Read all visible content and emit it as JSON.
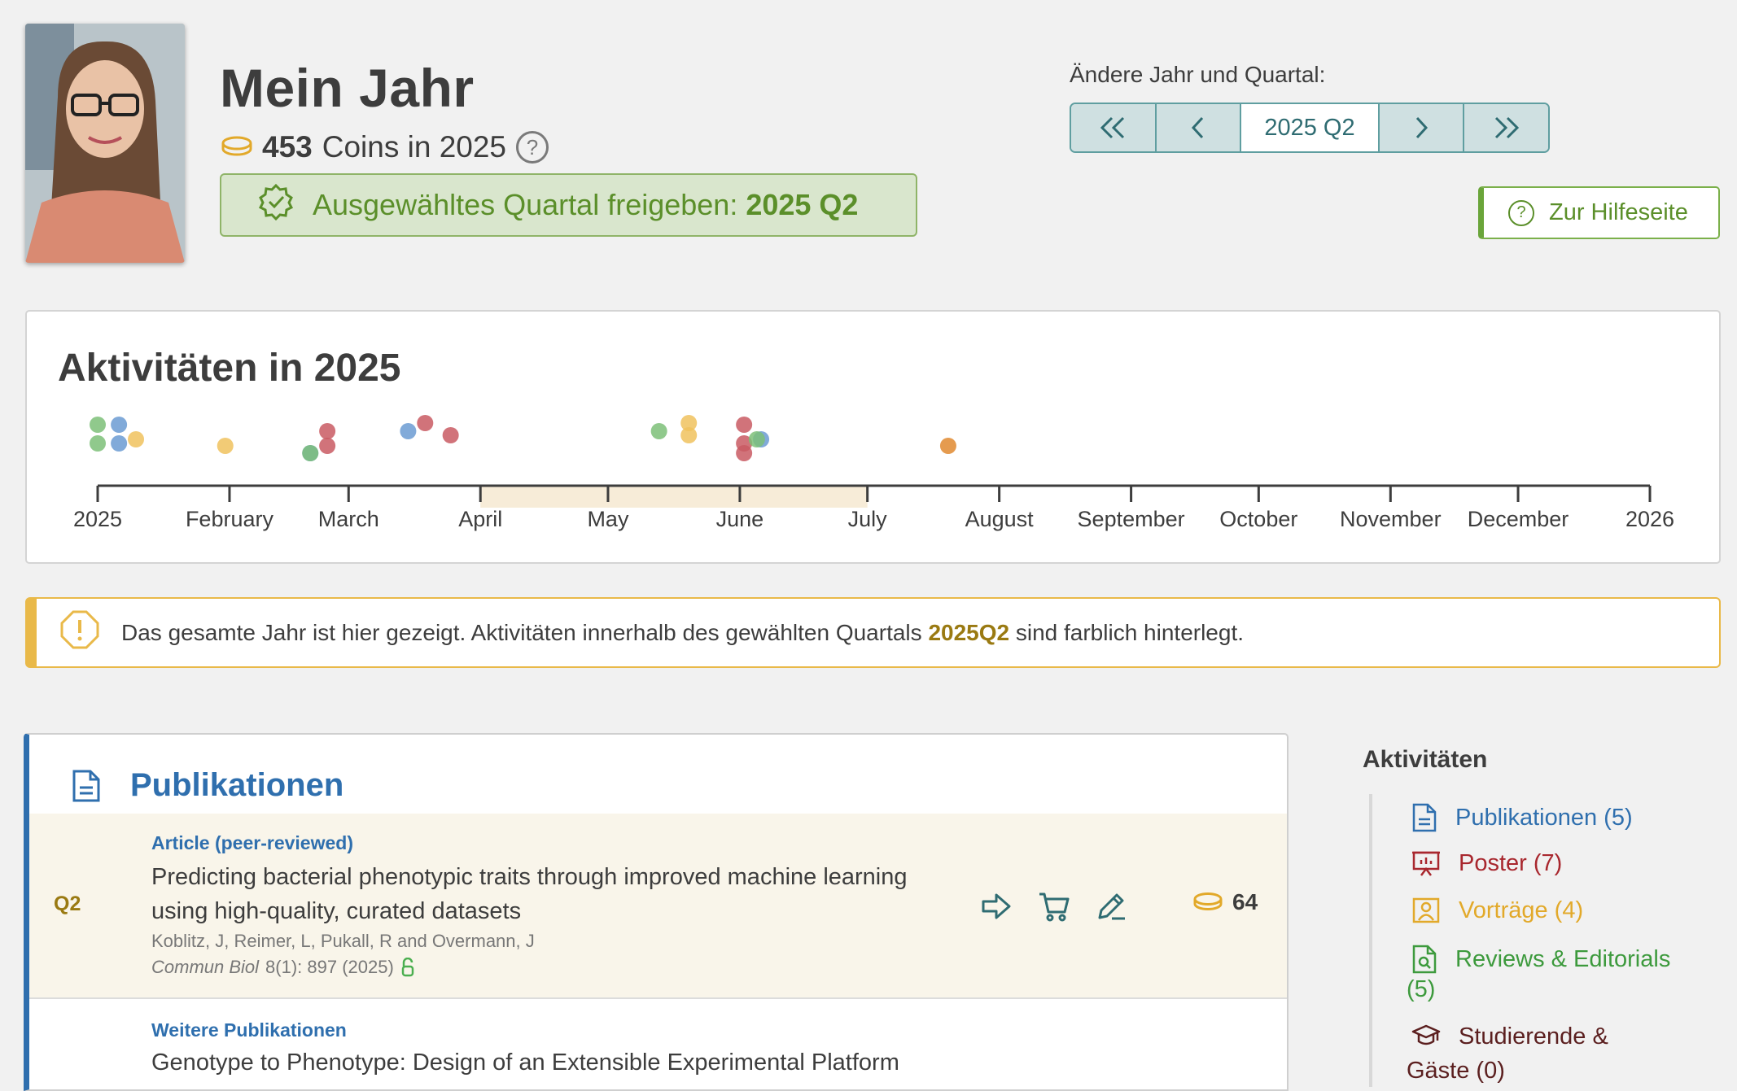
{
  "profile": {
    "title": "Mein Jahr",
    "coins_count": "453",
    "coins_text": "Coins in 2025",
    "release_label": "Ausgewähltes Quartal freigeben:",
    "release_quarter": "2025 Q2"
  },
  "quarter_nav": {
    "label": "Ändere Jahr und Quartal:",
    "current": "2025 Q2",
    "help_button": "Zur Hilfeseite"
  },
  "timeline": {
    "title": "Aktivitäten in 2025",
    "axis_labels": [
      "2025",
      "February",
      "March",
      "April",
      "May",
      "June",
      "July",
      "August",
      "September",
      "October",
      "November",
      "December",
      "2026"
    ],
    "highlight_quarter": "Q2",
    "category_colors": {
      "publikationen": "#6b9bd2",
      "poster": "#c95b63",
      "vortraege": "#f0c25e",
      "reviews": "#7dbf78",
      "other": "#e08a30"
    }
  },
  "chart_data": {
    "type": "scatter",
    "title": "Aktivitäten in 2025",
    "x_axis": "date",
    "xlim": [
      "2025-01-01",
      "2026-01-01"
    ],
    "series": [
      {
        "name": "Publikationen (5)",
        "color": "#6b9bd2",
        "dates": [
          "2025-01-06",
          "2025-01-06",
          "2025-02-20",
          "2025-03-15",
          "2025-06-06"
        ]
      },
      {
        "name": "Poster (7)",
        "color": "#c95b63",
        "dates": [
          "2025-02-24",
          "2025-03-19",
          "2025-03-25",
          "2025-06-02",
          "2025-06-02",
          "2025-06-02",
          "2025-02-24"
        ]
      },
      {
        "name": "Vorträge (4)",
        "color": "#f0c25e",
        "dates": [
          "2025-01-10",
          "2025-01-31",
          "2025-05-20",
          "2025-05-20"
        ]
      },
      {
        "name": "Reviews & Editorials (5)",
        "color": "#7dbf78",
        "dates": [
          "2025-01-01",
          "2025-01-01",
          "2025-02-20",
          "2025-05-13",
          "2025-06-05"
        ]
      },
      {
        "name": "",
        "color": "#e08a30",
        "dates": [
          "2025-07-20"
        ]
      }
    ]
  },
  "info": {
    "text_before": "Das gesamte Jahr ist hier gezeigt. Aktivitäten innerhalb des gewählten Quartals",
    "quarter": "2025Q2",
    "text_after": "sind farblich hinterlegt."
  },
  "publications": {
    "heading": "Publikationen",
    "items": [
      {
        "quarter": "Q2",
        "type": "Article (peer-reviewed)",
        "title": "Predicting bacterial phenotypic traits through improved machine learning using high-quality, curated datasets",
        "authors": "Koblitz, J, Reimer, L, Pukall, R and Overmann, J",
        "journal": "Commun Biol",
        "citation": "8(1): 897 (2025)",
        "coins": "64"
      },
      {
        "type": "Weitere Publikationen",
        "title": "Genotype to Phenotype: Design of an Extensible Experimental Platform"
      }
    ]
  },
  "sidebar": {
    "title": "Aktivitäten",
    "items": [
      {
        "label": "Publikationen (5)",
        "color": "#2f6fae",
        "icon": "document-icon"
      },
      {
        "label": "Poster (7)",
        "color": "#a8272e",
        "icon": "presentation-board-icon"
      },
      {
        "label": "Vorträge (4)",
        "color": "#e2a92a",
        "icon": "speaker-icon"
      },
      {
        "label": "Reviews & Editorials",
        "label2": "(5)",
        "color": "#3d9a3d",
        "icon": "document-search-icon"
      },
      {
        "label": "Studierende &",
        "label2": "Gäste (0)",
        "color": "#5b1f1f",
        "icon": "graduation-cap-icon"
      }
    ]
  }
}
